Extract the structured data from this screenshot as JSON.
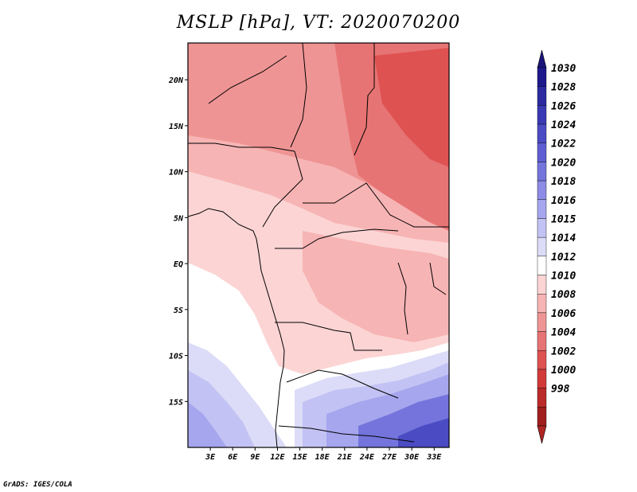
{
  "title": "MSLP [hPa], VT: 2020070200",
  "credit": "GrADS: IGES/COLA",
  "map": {
    "lon_range": [
      0,
      35
    ],
    "lat_range": [
      -20,
      24
    ],
    "lon_ticks": [
      {
        "value": 3,
        "label": "3E"
      },
      {
        "value": 6,
        "label": "6E"
      },
      {
        "value": 9,
        "label": "9E"
      },
      {
        "value": 12,
        "label": "12E"
      },
      {
        "value": 15,
        "label": "15E"
      },
      {
        "value": 18,
        "label": "18E"
      },
      {
        "value": 21,
        "label": "21E"
      },
      {
        "value": 24,
        "label": "24E"
      },
      {
        "value": 27,
        "label": "27E"
      },
      {
        "value": 30,
        "label": "30E"
      },
      {
        "value": 33,
        "label": "33E"
      }
    ],
    "lat_ticks": [
      {
        "value": 20,
        "label": "20N"
      },
      {
        "value": 15,
        "label": "15N"
      },
      {
        "value": 10,
        "label": "10N"
      },
      {
        "value": 5,
        "label": "5N"
      },
      {
        "value": 0,
        "label": "EQ"
      },
      {
        "value": -5,
        "label": "5S"
      },
      {
        "value": -10,
        "label": "10S"
      },
      {
        "value": -15,
        "label": "15S"
      }
    ]
  },
  "colorbar": {
    "levels": [
      "1030",
      "1028",
      "1026",
      "1024",
      "1022",
      "1020",
      "1018",
      "1016",
      "1015",
      "1014",
      "1012",
      "1010",
      "1008",
      "1006",
      "1004",
      "1002",
      "1000",
      "998"
    ],
    "colors": [
      "#1e1a8c",
      "#2b2aa0",
      "#3a3ab4",
      "#4b4bc4",
      "#5e5ed2",
      "#7474dc",
      "#8c8ce6",
      "#a6a6ee",
      "#c2c2f4",
      "#dcdcf8",
      "#ffffff",
      "#fcd4d4",
      "#f7b4b4",
      "#ef9494",
      "#e77474",
      "#df5252",
      "#d23a3a",
      "#bb2a2a",
      "#a01e1e"
    ],
    "top_color": "#1a1578",
    "bottom_color": "#b02525"
  },
  "regions": [
    {
      "name": "north-high-belt",
      "color": "#ef9494"
    },
    {
      "name": "sudan-low",
      "color": "#e77474"
    },
    {
      "name": "sudan-core",
      "color": "#df5252"
    },
    {
      "name": "sahel-band",
      "color": "#f7b4b4"
    },
    {
      "name": "central-band",
      "color": "#fcd4d4"
    },
    {
      "name": "congo-band",
      "color": "#f7b4b4"
    },
    {
      "name": "atlantic-neutral",
      "color": "#ffffff"
    },
    {
      "name": "south-pale",
      "color": "#dcdcf8"
    },
    {
      "name": "south-high-1",
      "color": "#c2c2f4"
    },
    {
      "name": "south-high-2",
      "color": "#a6a6ee"
    },
    {
      "name": "south-high-3",
      "color": "#7474dc"
    },
    {
      "name": "south-high-4",
      "color": "#4b4bc4"
    }
  ]
}
